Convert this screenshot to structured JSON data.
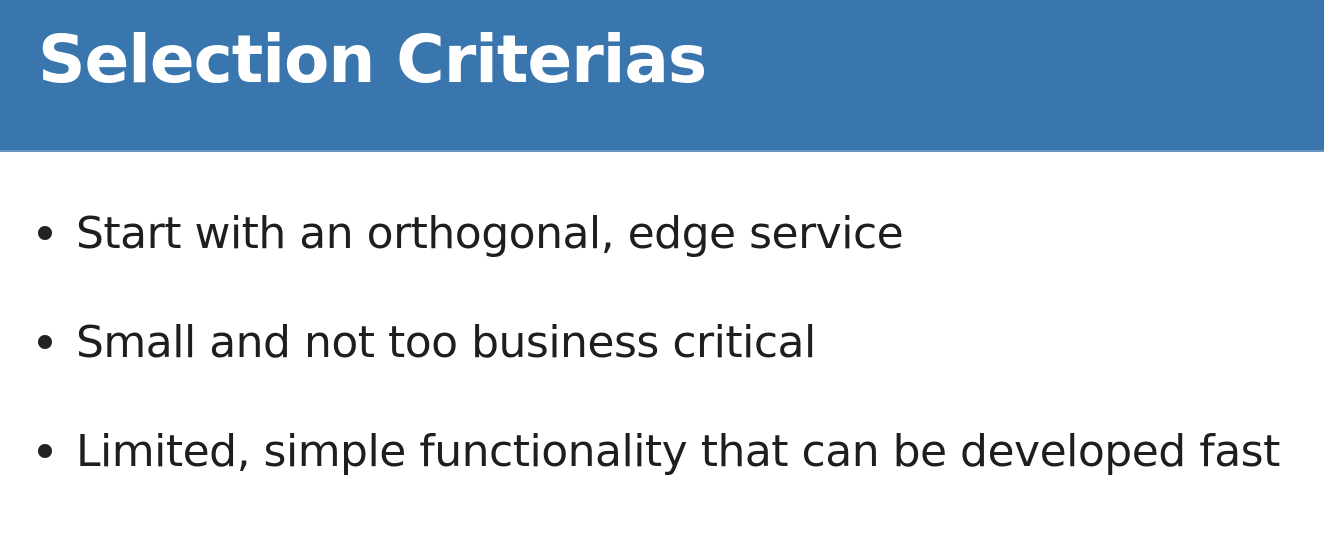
{
  "slide": {
    "title": "Selection Criterias",
    "header_color": "#3a76ae",
    "bullets": [
      "Start with an orthogonal, edge service",
      "Small and not too business critical",
      "Limited, simple functionality that can be developed fast"
    ]
  }
}
